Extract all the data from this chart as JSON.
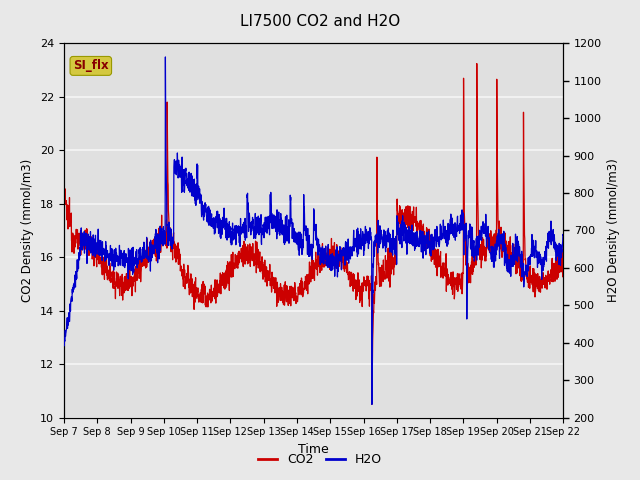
{
  "title": "LI7500 CO2 and H2O",
  "xlabel": "Time",
  "ylabel_left": "CO2 Density (mmol/m3)",
  "ylabel_right": "H2O Density (mmol/m3)",
  "xlim": [
    0,
    15.0
  ],
  "ylim_left": [
    10,
    24
  ],
  "ylim_right": [
    200,
    1200
  ],
  "co2_color": "#cc0000",
  "h2o_color": "#0000cc",
  "background_color": "#e8e8e8",
  "plot_bg_color": "#e0e0e0",
  "grid_color": "#f5f5f5",
  "annotation_text": "SI_flx",
  "annotation_fg": "#880000",
  "annotation_bg": "#d4c840",
  "xtick_labels": [
    "Sep 7",
    "Sep 8",
    "Sep 9",
    "Sep 10",
    "Sep 11",
    "Sep 12",
    "Sep 13",
    "Sep 14",
    "Sep 15",
    "Sep 16",
    "Sep 17",
    "Sep 18",
    "Sep 19",
    "Sep 20",
    "Sep 21",
    "Sep 22"
  ],
  "yticks_left": [
    10,
    12,
    14,
    16,
    18,
    20,
    22,
    24
  ],
  "yticks_right": [
    200,
    300,
    400,
    500,
    600,
    700,
    800,
    900,
    1000,
    1100,
    1200
  ],
  "legend_co2": "CO2",
  "legend_h2o": "H2O",
  "n_days": 15,
  "n_pts": 2000
}
